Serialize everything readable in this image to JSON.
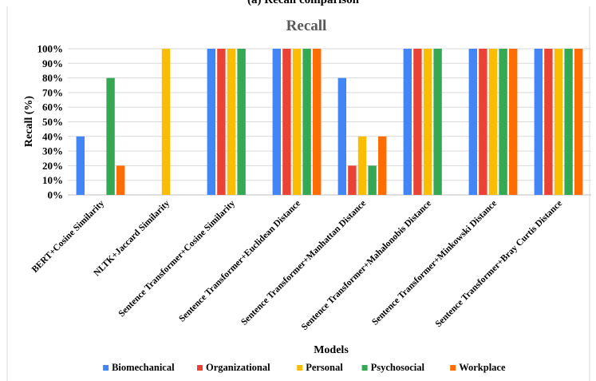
{
  "figure_caption": "(a) Recall comparison",
  "chart_data": {
    "type": "bar",
    "title": "Recall",
    "xlabel": "Models",
    "ylabel": "Recall (%)",
    "ylim": [
      0,
      100
    ],
    "yticks": [
      "0%",
      "10%",
      "20%",
      "30%",
      "40%",
      "50%",
      "60%",
      "70%",
      "80%",
      "90%",
      "100%"
    ],
    "grid": true,
    "legend_position": "bottom",
    "categories": [
      "BERT+Cosine Similarity",
      "NLTK+Jaccard Similarity",
      "Sentence Transformer+Cosine Similarity",
      "Sentence Transformer+Euclidean Distance",
      "Sentence Transformer+Manhattan Distance",
      "Sentence Transformer+Mahalonobis Distance",
      "Sentence Transformer+Minkowski Distance",
      "Sentence Transformer+Bray Curtis Distance"
    ],
    "series": [
      {
        "name": "Biomechanical",
        "color": "#4285f4",
        "values": [
          40,
          0,
          100,
          100,
          80,
          100,
          100,
          100
        ]
      },
      {
        "name": "Organizational",
        "color": "#ea4335",
        "values": [
          0,
          0,
          100,
          100,
          20,
          100,
          100,
          100
        ]
      },
      {
        "name": "Personal",
        "color": "#fbbc04",
        "values": [
          0,
          100,
          100,
          100,
          40,
          100,
          100,
          100
        ]
      },
      {
        "name": "Psychosocial",
        "color": "#34a853",
        "values": [
          80,
          0,
          100,
          100,
          20,
          100,
          100,
          100
        ]
      },
      {
        "name": "Workplace",
        "color": "#ff6d01",
        "values": [
          20,
          0,
          0,
          100,
          40,
          0,
          100,
          100
        ]
      }
    ]
  }
}
